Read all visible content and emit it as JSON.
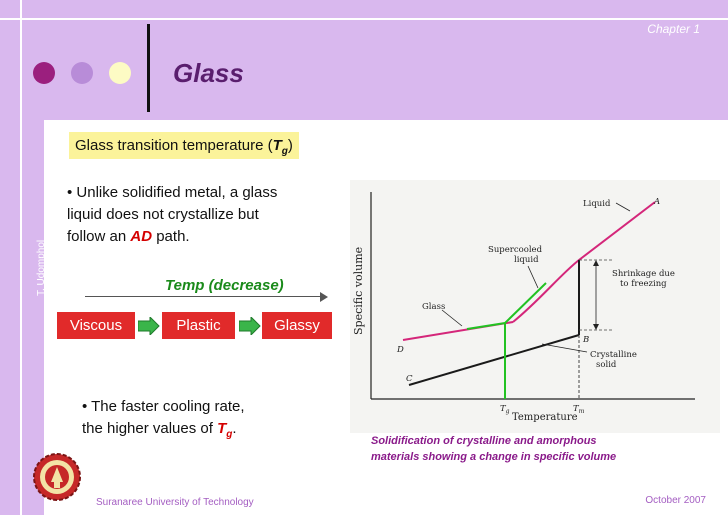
{
  "header": {
    "chapter": "Chapter 1",
    "title": "Glass",
    "colors": {
      "dot1": "#9b1f7e",
      "dot2": "#b88cd8",
      "dot3": "#fdfbc4",
      "band": "#d9b8ee"
    }
  },
  "side_label": "T. Udomphol",
  "subtitle": {
    "text": "Glass transition temperature (",
    "symbol": "T",
    "sub": "g",
    "close": ")"
  },
  "bullet1": {
    "lines": [
      "• Unlike solidified metal, a glass",
      "liquid does not crystallize but"
    ],
    "line3_pre": "follow an ",
    "line3_em": "AD",
    "line3_post": " path."
  },
  "flow": {
    "arrow_label": "Temp (decrease)",
    "boxes": [
      "Viscous",
      "Plastic",
      "Glassy"
    ]
  },
  "bullet2": {
    "line1": "• The faster cooling rate,",
    "line2_pre": "the higher values of ",
    "line2_sym": "T",
    "line2_sub": "g",
    "line2_post": "."
  },
  "figure": {
    "y_label": "Specific volume",
    "x_label": "Temperature",
    "labels": {
      "liquid": "Liquid",
      "A": "A",
      "supercooled1": "Supercooled",
      "supercooled2": "liquid",
      "shrink1": "Shrinkage due",
      "shrink2": "to freezing",
      "glass": "Glass",
      "B": "B",
      "crystalline1": "Crystalline",
      "crystalline2": "solid",
      "D": "D",
      "C": "C",
      "tg": "T",
      "tg_sub": "g",
      "tm": "T",
      "tm_sub": "m"
    }
  },
  "caption": [
    "Solidification of crystalline and amorphous",
    "materials showing a change in specific volume"
  ],
  "footer": {
    "left": "Suranaree University of Technology",
    "right": "October   2007"
  }
}
